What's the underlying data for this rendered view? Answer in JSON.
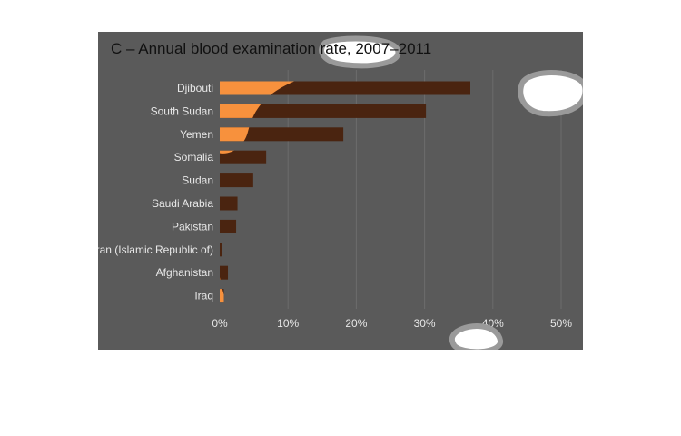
{
  "chart_data": {
    "type": "bar",
    "orientation": "horizontal",
    "title": "C – Annual blood examination rate, 2007–2011",
    "categories": [
      "Djibouti",
      "South Sudan",
      "Yemen",
      "Somalia",
      "Sudan",
      "Saudi Arabia",
      "Pakistan",
      "Iran (Islamic Republic of)",
      "Afghanistan",
      "Iraq"
    ],
    "values": [
      36.7,
      30.2,
      18.1,
      6.8,
      4.9,
      2.6,
      2.4,
      0.3,
      1.2,
      0.6
    ],
    "tick_values": [
      0,
      10,
      20,
      30,
      40,
      50
    ],
    "tick_labels": [
      "0%",
      "10%",
      "20%",
      "30%",
      "40%",
      "50%"
    ],
    "xlim": [
      0,
      50
    ],
    "grid": true,
    "colors": {
      "bar": "#f7913d",
      "bar_in_shadow": "#4a2410",
      "panel_bg": "#5a5a5a",
      "grid": "#6c6c6c"
    }
  }
}
